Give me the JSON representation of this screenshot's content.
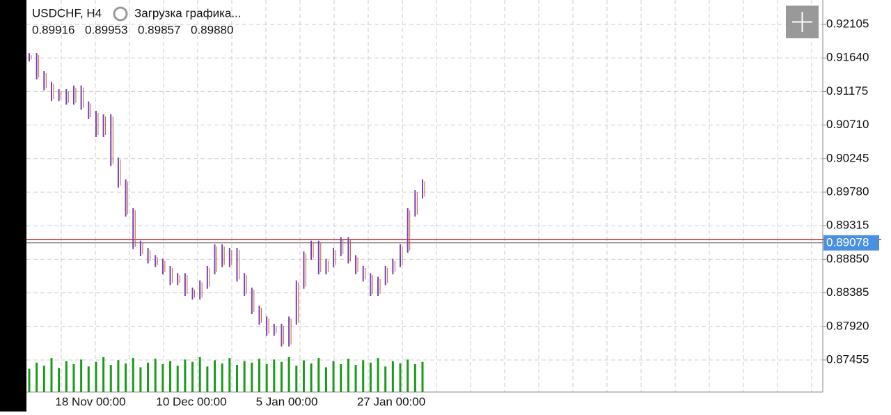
{
  "chart_data": {
    "type": "price-bars",
    "symbol": "USDCHF, H4",
    "status": "Загрузка графика...",
    "ohlc": [
      "0.89916",
      "0.89953",
      "0.89857",
      "0.89880"
    ],
    "ylim": [
      0.87011,
      0.92443
    ],
    "yticks": [
      0.92105,
      {
        "value": 0.9164,
        "label": "0.91640"
      },
      0.91175,
      {
        "value": 0.9071,
        "label": "0.90710"
      },
      0.90245,
      {
        "value": 0.8978,
        "label": "0.89780"
      },
      0.89315,
      {
        "value": 0.8885,
        "label": "0.88850"
      },
      0.88385,
      {
        "value": 0.8792,
        "label": "0.87920"
      },
      0.87455
    ],
    "current_price": 0.89078,
    "xtick_labels": [
      "18 Nov 00:00",
      "10 Dec 00:00",
      "5 Jan 00:00",
      "27 Jan 00:00"
    ],
    "grid": true,
    "color": "#7b3fb0",
    "volume_color": "#1a9a1a",
    "series": [
      {
        "name": "Close",
        "values": [
          0.9165,
          0.914,
          0.9125,
          0.911,
          0.9115,
          0.9105,
          0.912,
          0.9098,
          0.9085,
          0.906,
          0.908,
          0.902,
          0.899,
          0.895,
          0.8905,
          0.8895,
          0.8885,
          0.888,
          0.887,
          0.8855,
          0.886,
          0.884,
          0.8835,
          0.885,
          0.887,
          0.89,
          0.888,
          0.8895,
          0.886,
          0.884,
          0.8815,
          0.88,
          0.8785,
          0.879,
          0.877,
          0.88,
          0.885,
          0.889,
          0.8905,
          0.887,
          0.888,
          0.8895,
          0.891,
          0.8885,
          0.887,
          0.886,
          0.884,
          0.8855,
          0.887,
          0.888,
          0.89,
          0.895,
          0.8975,
          0.899
        ]
      },
      {
        "name": "Volume",
        "values": [
          30,
          38,
          34,
          44,
          31,
          40,
          36,
          42,
          33,
          39,
          45,
          35,
          41,
          37,
          44,
          32,
          38,
          43,
          36,
          40,
          34,
          42,
          39,
          45,
          33,
          41,
          37,
          44,
          35,
          40,
          38,
          43,
          36,
          42,
          39,
          45,
          34,
          41,
          37,
          44,
          32,
          40,
          36,
          43,
          35,
          41,
          38,
          44,
          33,
          40,
          37,
          42,
          36,
          39
        ]
      }
    ]
  }
}
